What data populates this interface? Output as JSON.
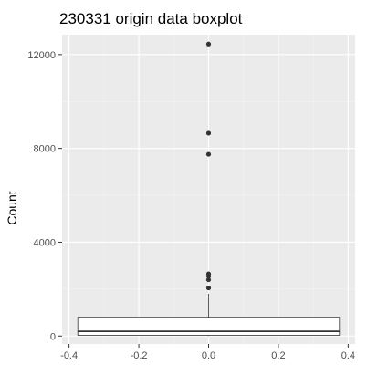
{
  "chart_data": {
    "type": "boxplot",
    "title": "230331 origin data boxplot",
    "xlabel": "",
    "ylabel": "Count",
    "xlim": [
      -0.42,
      0.42
    ],
    "ylim": [
      -340,
      12850
    ],
    "x_ticks": [
      -0.4,
      -0.2,
      0.0,
      0.2,
      0.4
    ],
    "x_tick_labels": [
      "-0.4",
      "-0.2",
      "0.0",
      "0.2",
      "0.4"
    ],
    "y_ticks": [
      0,
      4000,
      8000,
      12000
    ],
    "y_tick_labels": [
      "0",
      "4000",
      "8000",
      "12000"
    ],
    "grid": true,
    "box": {
      "x_center": 0.0,
      "x_left": -0.375,
      "x_right": 0.375,
      "min": 0,
      "q1": 30,
      "median": 200,
      "q3": 800,
      "whisker_high": 1800
    },
    "outliers": [
      {
        "x": 0.0,
        "y": 2050
      },
      {
        "x": 0.0,
        "y": 2400
      },
      {
        "x": 0.0,
        "y": 2550
      },
      {
        "x": 0.0,
        "y": 2650
      },
      {
        "x": 0.0,
        "y": 7750
      },
      {
        "x": 0.0,
        "y": 8650
      },
      {
        "x": 0.0,
        "y": 12450
      }
    ],
    "colors": {
      "panel_background": "#ebebeb",
      "grid_major": "#ffffff",
      "grid_minor": "#f4f4f4",
      "box_fill": "#ffffff",
      "box_outline": "#333333",
      "outlier": "#333333",
      "tick_label": "#4d4d4d",
      "tick_mark": "#333333"
    }
  }
}
